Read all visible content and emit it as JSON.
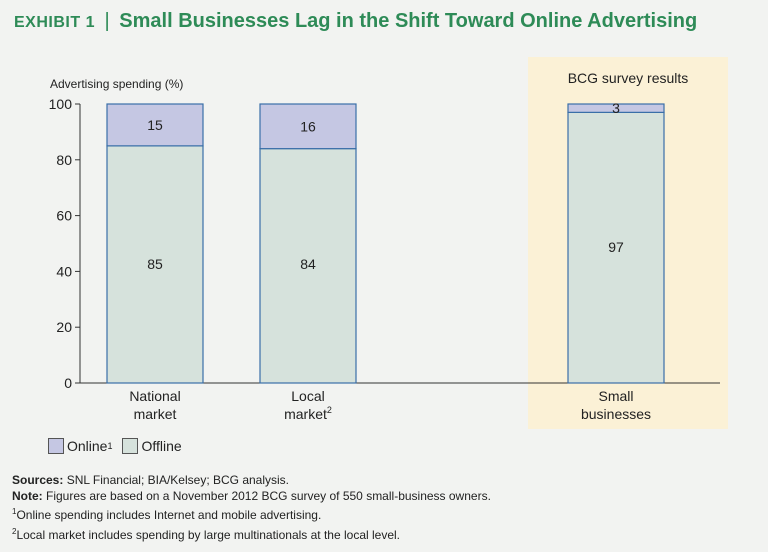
{
  "header": {
    "exhibit": "EXHIBIT 1",
    "separator": "|",
    "title": "Small Businesses Lag in the Shift Toward Online Advertising"
  },
  "survey_label": "BCG survey results",
  "legend": {
    "online": "Online",
    "online_sup": "1",
    "offline": "Offline"
  },
  "notes": {
    "sources_label": "Sources:",
    "sources": "SNL Financial; BIA/Kelsey; BCG analysis.",
    "note_label": "Note:",
    "note": "Figures are based on a November 2012 BCG survey of 550 small-business owners.",
    "fn1_mark": "1",
    "fn1": "Online spending includes Internet and mobile advertising.",
    "fn2_mark": "2",
    "fn2": "Local market includes spending by large multinationals at the local level."
  },
  "colors": {
    "title": "#2e8b57",
    "online": "#c5c7e3",
    "offline": "#d6e2dc",
    "border": "#3a6fa8",
    "highlight": "#fbf1d6"
  },
  "chart_data": {
    "type": "bar",
    "stacked": true,
    "ylabel": "Advertising spending (%)",
    "ylim": [
      0,
      100
    ],
    "yticks": [
      0,
      20,
      40,
      60,
      80,
      100
    ],
    "categories": [
      {
        "line1": "National",
        "line2": "market",
        "sup": ""
      },
      {
        "line1": "Local",
        "line2": "market",
        "sup": "2"
      },
      {
        "line1": "Small",
        "line2": "businesses",
        "sup": ""
      }
    ],
    "series": [
      {
        "name": "Offline",
        "values": [
          85,
          84,
          97
        ]
      },
      {
        "name": "Online",
        "values": [
          15,
          16,
          3
        ]
      }
    ]
  }
}
